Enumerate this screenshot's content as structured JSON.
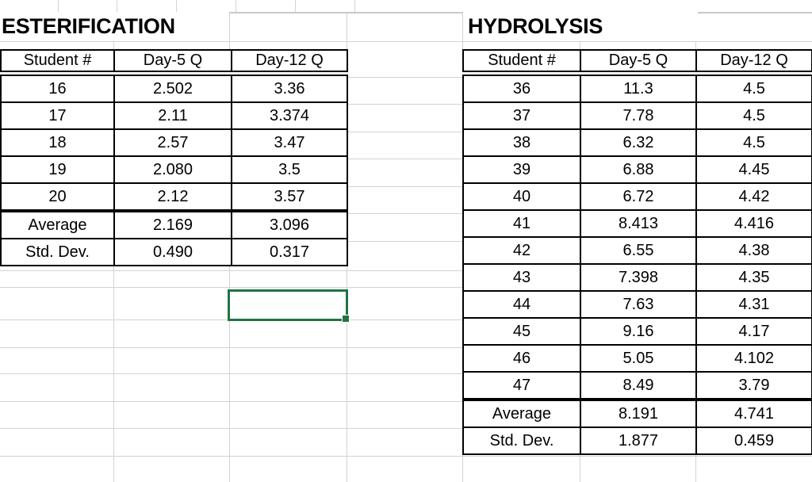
{
  "theme": {
    "selection_color": "#217346",
    "gridline_color": "#d3d3d3",
    "table_border_color": "#000000",
    "background_color": "#ffffff",
    "text_color": "#000000"
  },
  "tables": [
    {
      "title": "ESTERIFICATION",
      "columns": [
        "Student #",
        "Day-5 Q",
        "Day-12 Q"
      ],
      "rows": [
        [
          "16",
          "2.502",
          "3.36"
        ],
        [
          "17",
          "2.11",
          "3.374"
        ],
        [
          "18",
          "2.57",
          "3.47"
        ],
        [
          "19",
          "2.080",
          "3.5"
        ],
        [
          "20",
          "2.12",
          "3.57"
        ]
      ],
      "summary": [
        [
          "Average",
          "2.169",
          "3.096"
        ],
        [
          "Std. Dev.",
          "0.490",
          "0.317"
        ]
      ]
    },
    {
      "title": "HYDROLYSIS",
      "columns": [
        "Student #",
        "Day-5 Q",
        "Day-12 Q"
      ],
      "rows": [
        [
          "36",
          "11.3",
          "4.5"
        ],
        [
          "37",
          "7.78",
          "4.5"
        ],
        [
          "38",
          "6.32",
          "4.5"
        ],
        [
          "39",
          "6.88",
          "4.45"
        ],
        [
          "40",
          "6.72",
          "4.42"
        ],
        [
          "41",
          "8.413",
          "4.416"
        ],
        [
          "42",
          "6.55",
          "4.38"
        ],
        [
          "43",
          "7.398",
          "4.35"
        ],
        [
          "44",
          "7.63",
          "4.31"
        ],
        [
          "45",
          "9.16",
          "4.17"
        ],
        [
          "46",
          "5.05",
          "4.102"
        ],
        [
          "47",
          "8.49",
          "3.79"
        ]
      ],
      "summary": [
        [
          "Average",
          "8.191",
          "4.741"
        ],
        [
          "Std. Dev.",
          "1.877",
          "0.459"
        ]
      ]
    }
  ],
  "selection": {
    "value": "",
    "column": "Day-12 Q area",
    "state": "empty active cell with fill handle"
  }
}
